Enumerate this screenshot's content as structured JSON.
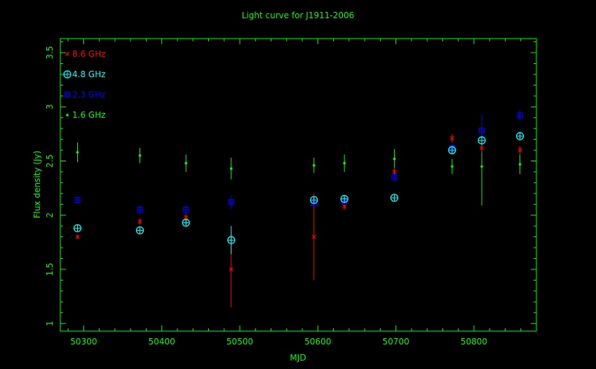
{
  "colors": {
    "background": "#000000",
    "frame": "#00ff00",
    "title": "#00ff00",
    "s86": "#ff0000",
    "s48": "#00ffff",
    "s23": "#0000ff",
    "s16": "#00ff00"
  },
  "chart_data": {
    "type": "scatter",
    "title": "Light curve for J1911-2006",
    "xlabel": "MJD",
    "ylabel": "Flux density (Jy)",
    "xlim": [
      50270,
      50880
    ],
    "ylim": [
      0.93,
      3.63
    ],
    "xticks": [
      50300,
      50400,
      50500,
      50600,
      50700,
      50800
    ],
    "yticks": [
      1,
      1.5,
      2,
      2.5,
      3,
      3.5
    ],
    "xtick_labels": [
      "50300",
      "50400",
      "50500",
      "50600",
      "50700",
      "50800"
    ],
    "ytick_labels": [
      "1",
      "1.5",
      "2",
      "2.5",
      "3",
      "3.5"
    ],
    "legend_position": "top-left",
    "series": [
      {
        "name": "8.6 GHz",
        "marker": "cross",
        "color": "#ff0000",
        "points": [
          {
            "x": 50292,
            "y": 1.8,
            "err": 0.02
          },
          {
            "x": 50372,
            "y": 1.94,
            "err": 0.03
          },
          {
            "x": 50431,
            "y": 1.98,
            "err": 0.03
          },
          {
            "x": 50489,
            "y": 1.5,
            "err": 0.35
          },
          {
            "x": 50595,
            "y": 1.8,
            "err": 0.4
          },
          {
            "x": 50634,
            "y": 2.08,
            "err": 0.03
          },
          {
            "x": 50698,
            "y": 2.4,
            "err": 0.04
          },
          {
            "x": 50772,
            "y": 2.71,
            "err": 0.04
          },
          {
            "x": 50810,
            "y": 2.62,
            "err": 0.04
          },
          {
            "x": 50859,
            "y": 2.6,
            "err": 0.04
          }
        ]
      },
      {
        "name": "4.8 GHz",
        "marker": "circle-plus",
        "color": "#00ffff",
        "points": [
          {
            "x": 50292,
            "y": 1.88,
            "err": 0.02
          },
          {
            "x": 50372,
            "y": 1.86,
            "err": 0.02
          },
          {
            "x": 50431,
            "y": 1.93,
            "err": 0.03
          },
          {
            "x": 50489,
            "y": 1.77,
            "err": 0.13
          },
          {
            "x": 50595,
            "y": 2.14,
            "err": 0.02
          },
          {
            "x": 50634,
            "y": 2.15,
            "err": 0.02
          },
          {
            "x": 50698,
            "y": 2.16,
            "err": 0.02
          },
          {
            "x": 50772,
            "y": 2.6,
            "err": 0.04
          },
          {
            "x": 50810,
            "y": 2.69,
            "err": 0.04
          },
          {
            "x": 50859,
            "y": 2.73,
            "err": 0.04
          }
        ]
      },
      {
        "name": "2.3 GHz",
        "marker": "square-plus",
        "color": "#0000ff",
        "points": [
          {
            "x": 50292,
            "y": 2.14,
            "err": 0.03
          },
          {
            "x": 50372,
            "y": 2.05,
            "err": 0.04
          },
          {
            "x": 50431,
            "y": 2.05,
            "err": 0.04
          },
          {
            "x": 50489,
            "y": 2.12,
            "err": 0.06
          },
          {
            "x": 50595,
            "y": 2.11,
            "err": 0.04
          },
          {
            "x": 50634,
            "y": 2.13,
            "err": 0.03
          },
          {
            "x": 50698,
            "y": 2.35,
            "err": 0.04
          },
          {
            "x": 50772,
            "y": 2.62,
            "err": 0.04
          },
          {
            "x": 50810,
            "y": 2.78,
            "err": 0.15
          },
          {
            "x": 50859,
            "y": 2.92,
            "err": 0.05
          }
        ]
      },
      {
        "name": "1.6 GHz",
        "marker": "dot",
        "color": "#00ff00",
        "points": [
          {
            "x": 50292,
            "y": 2.58,
            "err": 0.09
          },
          {
            "x": 50372,
            "y": 2.55,
            "err": 0.07
          },
          {
            "x": 50431,
            "y": 2.48,
            "err": 0.08
          },
          {
            "x": 50489,
            "y": 2.43,
            "err": 0.1
          },
          {
            "x": 50595,
            "y": 2.46,
            "err": 0.07
          },
          {
            "x": 50634,
            "y": 2.48,
            "err": 0.08
          },
          {
            "x": 50698,
            "y": 2.52,
            "err": 0.09
          },
          {
            "x": 50772,
            "y": 2.45,
            "err": 0.07
          },
          {
            "x": 50810,
            "y": 2.45,
            "err": 0.36
          },
          {
            "x": 50859,
            "y": 2.47,
            "err": 0.09
          }
        ]
      }
    ]
  }
}
